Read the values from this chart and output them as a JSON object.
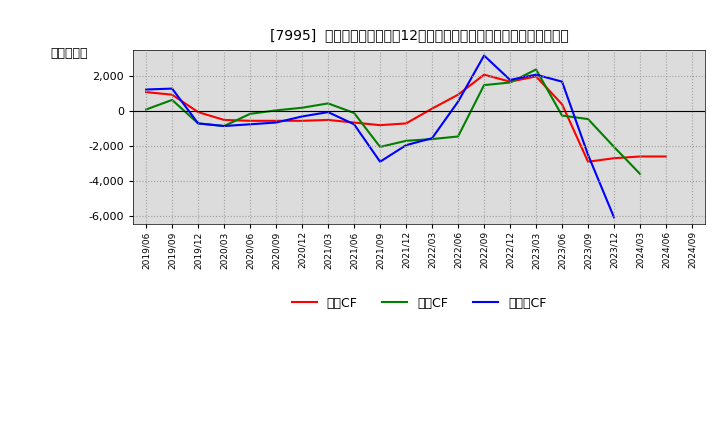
{
  "title": "[7995]  キャッシュフローの12か月移動合計の対前年同期増減額の推移",
  "ylabel": "（百万円）",
  "xlabels": [
    "2019/06",
    "2019/09",
    "2019/12",
    "2020/03",
    "2020/06",
    "2020/09",
    "2020/12",
    "2021/03",
    "2021/06",
    "2021/09",
    "2021/12",
    "2022/03",
    "2022/06",
    "2022/09",
    "2022/12",
    "2023/03",
    "2023/06",
    "2023/09",
    "2023/12",
    "2024/03",
    "2024/06",
    "2024/09"
  ],
  "operating_cf": [
    1100,
    950,
    -50,
    -500,
    -550,
    -550,
    -550,
    -500,
    -650,
    -800,
    -700,
    150,
    950,
    2100,
    1700,
    2000,
    400,
    -2900,
    -2700,
    -2600,
    -2600,
    null
  ],
  "investing_cf": [
    100,
    650,
    -700,
    -850,
    -150,
    50,
    200,
    450,
    -100,
    -2050,
    -1700,
    -1600,
    -1450,
    1500,
    1650,
    2400,
    -250,
    -450,
    -2050,
    -3600,
    null,
    null
  ],
  "free_cf": [
    1250,
    1300,
    -700,
    -850,
    -750,
    -650,
    -300,
    -50,
    -750,
    -2900,
    -1950,
    -1550,
    550,
    3200,
    1800,
    2100,
    1700,
    -2500,
    -6100,
    null,
    null,
    null
  ],
  "ylim": [
    -6500,
    3500
  ],
  "yticks": [
    -6000,
    -4000,
    -2000,
    0,
    2000
  ],
  "colors": {
    "operating": "#ff0000",
    "investing": "#008000",
    "free": "#0000ff"
  },
  "legend_labels": [
    "営業CF",
    "投資CF",
    "フリーCF"
  ],
  "background_color": "#ffffff",
  "plot_bg_color": "#dcdcdc"
}
